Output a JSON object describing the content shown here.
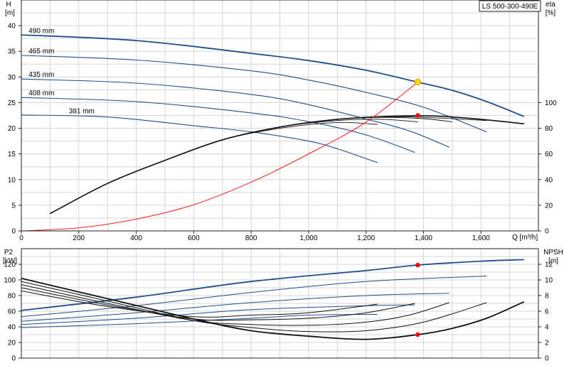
{
  "chart_data": [
    {
      "type": "line",
      "title": "LS 500-300-490E",
      "xlabel": "Q [m³/h]",
      "ylabel_left": [
        "H",
        "[m]"
      ],
      "ylabel_right": [
        "eta",
        "[%]"
      ],
      "xlim": [
        0,
        1800
      ],
      "ylim_left": [
        0,
        45
      ],
      "ylim_right": [
        0,
        180
      ],
      "x_ticks": [
        {
          "v": 0,
          "label": "0"
        },
        {
          "v": 200,
          "label": "200"
        },
        {
          "v": 400,
          "label": "400"
        },
        {
          "v": 600,
          "label": "600"
        },
        {
          "v": 800,
          "label": "800"
        },
        {
          "v": 1000,
          "label": "1,000"
        },
        {
          "v": 1200,
          "label": "1,200"
        },
        {
          "v": 1400,
          "label": "1,400"
        },
        {
          "v": 1600,
          "label": "1,600"
        }
      ],
      "y_ticks_left": [
        "0",
        "5",
        "10",
        "15",
        "20",
        "25",
        "30",
        "35",
        "40"
      ],
      "y_ticks_right": [
        "0",
        "20",
        "40",
        "60",
        "80",
        "100"
      ],
      "grid": true,
      "head_curves": [
        {
          "name": "490 mm",
          "color": "#1f4f8c",
          "points": [
            [
              0,
              38.2
            ],
            [
              400,
              37.1
            ],
            [
              800,
              34.6
            ],
            [
              1000,
              33.2
            ],
            [
              1200,
              31.3
            ],
            [
              1380,
              29.0
            ],
            [
              1500,
              27.4
            ],
            [
              1620,
              25.2
            ],
            [
              1750,
              22.3
            ]
          ]
        },
        {
          "name": "465 mm",
          "color": "#1f4f8c",
          "points": [
            [
              0,
              34.2
            ],
            [
              400,
              33.3
            ],
            [
              800,
              31.2
            ],
            [
              1000,
              29.4
            ],
            [
              1200,
              27.0
            ],
            [
              1400,
              24.1
            ],
            [
              1620,
              19.3
            ]
          ]
        },
        {
          "name": "435 mm",
          "color": "#1f4f8c",
          "points": [
            [
              0,
              29.6
            ],
            [
              400,
              28.8
            ],
            [
              800,
              26.6
            ],
            [
              1000,
              24.6
            ],
            [
              1200,
              21.8
            ],
            [
              1350,
              19.5
            ],
            [
              1490,
              16.3
            ]
          ]
        },
        {
          "name": "408 mm",
          "color": "#1f4f8c",
          "points": [
            [
              0,
              26.0
            ],
            [
              400,
              25.2
            ],
            [
              800,
              23.0
            ],
            [
              1000,
              21.3
            ],
            [
              1200,
              18.7
            ],
            [
              1370,
              15.3
            ]
          ]
        },
        {
          "name": "381 mm",
          "color": "#1f4f8c",
          "points": [
            [
              0,
              22.6
            ],
            [
              300,
              22.2
            ],
            [
              600,
              20.5
            ],
            [
              800,
              19.3
            ],
            [
              1000,
              17.5
            ],
            [
              1100,
              16.0
            ],
            [
              1240,
              13.3
            ]
          ]
        }
      ],
      "efficiency_curves": [
        {
          "points": [
            [
              100,
              13.5
            ],
            [
              300,
              37
            ],
            [
              500,
              55
            ],
            [
              700,
              71
            ],
            [
              900,
              81
            ],
            [
              1100,
              87
            ],
            [
              1300,
              89.5
            ],
            [
              1450,
              89.5
            ],
            [
              1600,
              87
            ],
            [
              1750,
              83.5
            ]
          ]
        },
        {
          "points": [
            [
              100,
              13.5
            ],
            [
              300,
              37
            ],
            [
              500,
              55
            ],
            [
              700,
              71
            ],
            [
              900,
              81
            ],
            [
              1100,
              87
            ],
            [
              1300,
              89
            ],
            [
              1450,
              88
            ],
            [
              1620,
              86
            ]
          ]
        },
        {
          "points": [
            [
              100,
              13.5
            ],
            [
              300,
              37
            ],
            [
              500,
              55
            ],
            [
              700,
              71
            ],
            [
              900,
              81
            ],
            [
              1100,
              87
            ],
            [
              1250,
              88.5
            ],
            [
              1400,
              87.5
            ],
            [
              1500,
              85
            ]
          ]
        },
        {
          "points": [
            [
              100,
              13.5
            ],
            [
              300,
              37
            ],
            [
              500,
              55
            ],
            [
              700,
              71
            ],
            [
              900,
              81
            ],
            [
              1100,
              86
            ],
            [
              1250,
              87
            ],
            [
              1380,
              85
            ]
          ]
        },
        {
          "points": [
            [
              100,
              13.5
            ],
            [
              300,
              37
            ],
            [
              500,
              55
            ],
            [
              700,
              71
            ],
            [
              900,
              80
            ],
            [
              1100,
              84.5
            ],
            [
              1240,
              83
            ]
          ]
        }
      ],
      "system_curve": {
        "color": "#ff0000",
        "points": [
          [
            0,
            0
          ],
          [
            200,
            0.6
          ],
          [
            400,
            2.3
          ],
          [
            600,
            5.1
          ],
          [
            800,
            9.5
          ],
          [
            1000,
            15.0
          ],
          [
            1200,
            21.2
          ],
          [
            1380,
            29.0
          ]
        ]
      },
      "duty_point_head": {
        "x": 1380,
        "y": 29.0,
        "color": "#ffd700"
      },
      "duty_point_eta": {
        "x": 1380,
        "y_right": 90,
        "color": "#ff0000"
      }
    },
    {
      "type": "line",
      "xlim": [
        0,
        1800
      ],
      "ylabel_left": [
        "P2",
        "[kW]"
      ],
      "ylabel_right": [
        "NPSH",
        "[m]"
      ],
      "ylim_left": [
        0,
        140
      ],
      "ylim_right": [
        0,
        14
      ],
      "y_ticks_left": [
        "0",
        "20",
        "40",
        "60",
        "80",
        "100",
        "120"
      ],
      "y_ticks_right": [
        "0",
        "2",
        "4",
        "6",
        "8",
        "10",
        "12"
      ],
      "grid": true,
      "power_curves": [
        {
          "color": "#1f4f8c",
          "points": [
            [
              0,
              61
            ],
            [
              400,
              78
            ],
            [
              800,
              98
            ],
            [
              1200,
              112
            ],
            [
              1380,
              119
            ],
            [
              1600,
              124
            ],
            [
              1750,
              126
            ]
          ]
        },
        {
          "color": "#1f4f8c",
          "points": [
            [
              0,
              53
            ],
            [
              400,
              67
            ],
            [
              800,
              84
            ],
            [
              1200,
              98
            ],
            [
              1620,
              105
            ]
          ]
        },
        {
          "color": "#1f4f8c",
          "points": [
            [
              0,
              47
            ],
            [
              400,
              58
            ],
            [
              800,
              71
            ],
            [
              1200,
              80
            ],
            [
              1490,
              83
            ]
          ]
        },
        {
          "color": "#1f4f8c",
          "points": [
            [
              0,
              43
            ],
            [
              400,
              51
            ],
            [
              800,
              62
            ],
            [
              1200,
              67
            ],
            [
              1370,
              68
            ]
          ]
        },
        {
          "color": "#1f4f8c",
          "points": [
            [
              0,
              39
            ],
            [
              400,
              44
            ],
            [
              800,
              51
            ],
            [
              1000,
              55
            ],
            [
              1240,
              56
            ]
          ]
        }
      ],
      "npsh_curves": [
        {
          "points": [
            [
              0,
              10.2
            ],
            [
              300,
              7.6
            ],
            [
              600,
              5.0
            ],
            [
              800,
              3.5
            ],
            [
              1000,
              2.8
            ],
            [
              1200,
              2.4
            ],
            [
              1380,
              3.0
            ],
            [
              1500,
              3.8
            ],
            [
              1620,
              5.1
            ],
            [
              1750,
              7.2
            ]
          ]
        },
        {
          "points": [
            [
              0,
              9.8
            ],
            [
              300,
              7.3
            ],
            [
              600,
              4.8
            ],
            [
              800,
              3.9
            ],
            [
              1000,
              3.4
            ],
            [
              1200,
              3.5
            ],
            [
              1400,
              4.6
            ],
            [
              1620,
              7.1
            ]
          ]
        },
        {
          "points": [
            [
              0,
              9.4
            ],
            [
              300,
              7.0
            ],
            [
              600,
              4.8
            ],
            [
              800,
              4.3
            ],
            [
              1000,
              4.2
            ],
            [
              1200,
              4.6
            ],
            [
              1350,
              5.5
            ],
            [
              1490,
              7.1
            ]
          ]
        },
        {
          "points": [
            [
              0,
              9.0
            ],
            [
              300,
              6.8
            ],
            [
              600,
              5.0
            ],
            [
              800,
              4.9
            ],
            [
              1000,
              5.1
            ],
            [
              1200,
              5.8
            ],
            [
              1370,
              7.0
            ]
          ]
        },
        {
          "points": [
            [
              0,
              8.6
            ],
            [
              300,
              6.6
            ],
            [
              600,
              5.3
            ],
            [
              800,
              5.5
            ],
            [
              1000,
              5.8
            ],
            [
              1240,
              6.9
            ]
          ]
        }
      ],
      "duty_point_power": {
        "x": 1380,
        "y": 119,
        "color": "#ff0000"
      },
      "duty_point_npsh": {
        "x": 1380,
        "y_right": 3.0,
        "color": "#ff0000"
      }
    }
  ]
}
